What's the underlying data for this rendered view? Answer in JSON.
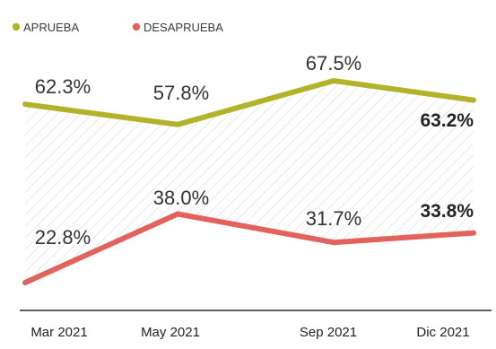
{
  "chart_data": {
    "type": "line",
    "categories": [
      "Mar 2021",
      "May 2021",
      "Sep 2021",
      "Dic 2021"
    ],
    "series": [
      {
        "name": "APRUEBA",
        "values": [
          62.3,
          57.8,
          67.5,
          63.2
        ],
        "color": "#b3b32b",
        "labels": [
          "62.3%",
          "57.8%",
          "67.5%",
          "63.2%"
        ]
      },
      {
        "name": "DESAPRUEBA",
        "values": [
          22.8,
          38.0,
          31.7,
          33.8
        ],
        "color": "#e2625d",
        "labels": [
          "22.8%",
          "38.0%",
          "31.7%",
          "33.8%"
        ]
      }
    ],
    "legend_position": "top-left",
    "highlight_last_label": true,
    "hatched_band_between_series": true,
    "title": "",
    "xlabel": "",
    "ylabel": ""
  }
}
